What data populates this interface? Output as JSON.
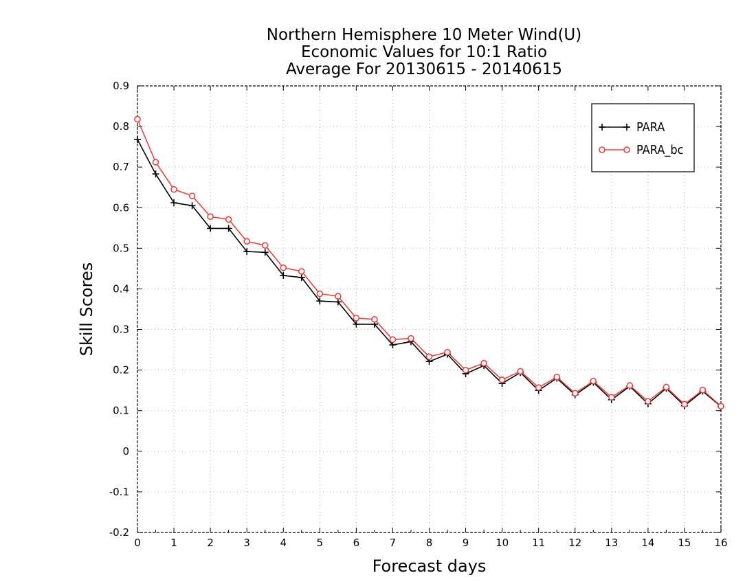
{
  "chart_data": {
    "type": "line",
    "title_lines": [
      "Northern Hemisphere 10 Meter Wind(U)",
      "Economic Values for 10:1 Ratio",
      "Average For 20130615 - 20140615"
    ],
    "xlabel": "Forecast days",
    "ylabel": "Skill Scores",
    "xlim": [
      0,
      16
    ],
    "ylim": [
      -0.2,
      0.9
    ],
    "x_ticks": [
      "0",
      "1",
      "2",
      "3",
      "4",
      "5",
      "6",
      "7",
      "8",
      "9",
      "10",
      "11",
      "12",
      "13",
      "14",
      "15",
      "16"
    ],
    "y_ticks": [
      "-0.2",
      "-0.1",
      "0",
      "0.1",
      "0.2",
      "0.3",
      "0.4",
      "0.5",
      "0.6",
      "0.7",
      "0.8",
      "0.9"
    ],
    "grid": true,
    "legend_position": "top-right",
    "x": [
      0,
      0.5,
      1,
      1.5,
      2,
      2.5,
      3,
      3.5,
      4,
      4.5,
      5,
      5.5,
      6,
      6.5,
      7,
      7.5,
      8,
      8.5,
      9,
      9.5,
      10,
      10.5,
      11,
      11.5,
      12,
      12.5,
      13,
      13.5,
      14,
      14.5,
      15,
      15.5,
      16
    ],
    "series": [
      {
        "name": "PARA",
        "color": "#000000",
        "marker": "plus",
        "values": [
          0.768,
          0.683,
          0.612,
          0.605,
          0.549,
          0.549,
          0.492,
          0.49,
          0.433,
          0.428,
          0.37,
          0.368,
          0.313,
          0.313,
          0.262,
          0.27,
          0.221,
          0.239,
          0.191,
          0.211,
          0.167,
          0.194,
          0.15,
          0.18,
          0.139,
          0.17,
          0.127,
          0.16,
          0.117,
          0.155,
          0.112,
          0.148,
          0.11
        ]
      },
      {
        "name": "PARA_bc",
        "color": "#e8403f",
        "marker": "circle",
        "values": [
          0.818,
          0.712,
          0.645,
          0.629,
          0.578,
          0.571,
          0.517,
          0.507,
          0.452,
          0.443,
          0.388,
          0.382,
          0.328,
          0.325,
          0.275,
          0.278,
          0.233,
          0.244,
          0.2,
          0.217,
          0.176,
          0.197,
          0.157,
          0.183,
          0.143,
          0.173,
          0.133,
          0.162,
          0.123,
          0.158,
          0.116,
          0.151,
          0.111
        ]
      }
    ]
  }
}
